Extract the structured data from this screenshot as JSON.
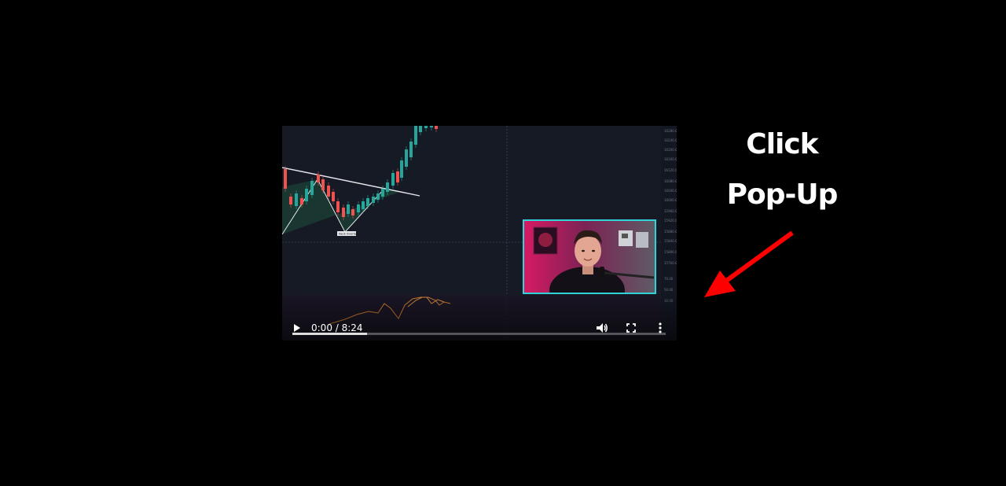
{
  "player": {
    "time_display": "0:00 / 8:24",
    "progress_fraction": 0.2,
    "chart_tag": "Neck Inverted"
  },
  "annotation": {
    "line1": "Click",
    "line2": "Pop-Up",
    "arrow_color": "#ff0000"
  },
  "colors": {
    "webcam_border": "#2fd3d8",
    "bull_candle": "#26a69a",
    "bear_candle": "#ef5350"
  },
  "icons": {
    "play": "play-icon",
    "volume": "volume-icon",
    "fullscreen": "fullscreen-icon",
    "more": "more-vertical-icon"
  }
}
